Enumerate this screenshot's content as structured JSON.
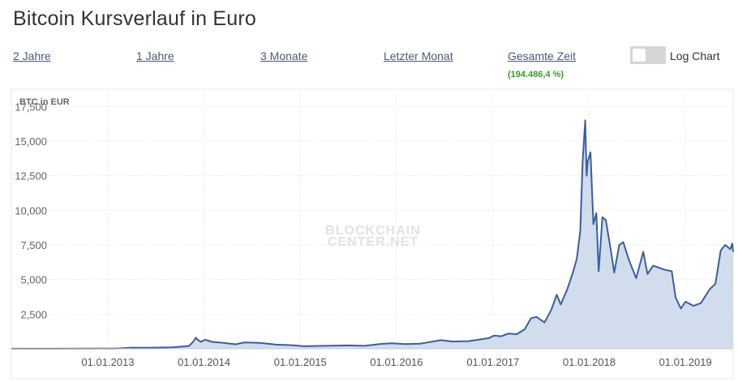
{
  "page": {
    "title": "Bitcoin Kursverlauf in Euro"
  },
  "range_selector": {
    "links": [
      "2 Jahre",
      "1 Jahre",
      "3 Monate",
      "Letzter Monat",
      "Gesamte Zeit"
    ],
    "total_change": "(194.486,4 %)"
  },
  "log_toggle": {
    "label": "Log Chart",
    "enabled": false
  },
  "watermark": {
    "line1": "BLOCKCHAIN",
    "line2": "CENTER.NET"
  },
  "colors": {
    "line": "#3a5f9e",
    "fill": "#c9d6ea",
    "grid": "#e2e2e2",
    "link": "#4a5a7a",
    "positive": "#3a9a2a"
  },
  "chart_data": {
    "type": "area",
    "title": "",
    "ylabel": "BTC in EUR",
    "xlabel": "",
    "ylim": [
      0,
      18750
    ],
    "y_ticks": [
      2500,
      5000,
      7500,
      10000,
      12500,
      15000,
      17500
    ],
    "y_tick_labels": [
      "2,500",
      "5,000",
      "7,500",
      "10,000",
      "12,500",
      "15,000",
      "17,500"
    ],
    "x_ticks": [
      "2013-01-01",
      "2014-01-01",
      "2015-01-01",
      "2016-01-01",
      "2017-01-01",
      "2018-01-01",
      "2019-01-01"
    ],
    "x_tick_labels": [
      "01.01.2013",
      "01.01.2014",
      "01.01.2015",
      "01.01.2016",
      "01.01.2017",
      "01.01.2018",
      "01.01.2019"
    ],
    "xlim": [
      "2012-01-01",
      "2019-07-01"
    ],
    "grid": true,
    "legend": "none",
    "series": [
      {
        "points": [
          [
            "2012-01-01",
            4
          ],
          [
            "2012-06-01",
            5
          ],
          [
            "2012-12-01",
            10
          ],
          [
            "2013-02-01",
            20
          ],
          [
            "2013-04-01",
            80
          ],
          [
            "2013-06-01",
            70
          ],
          [
            "2013-09-01",
            100
          ],
          [
            "2013-11-05",
            200
          ],
          [
            "2013-11-20",
            500
          ],
          [
            "2013-12-01",
            800
          ],
          [
            "2013-12-08",
            650
          ],
          [
            "2013-12-20",
            500
          ],
          [
            "2014-01-05",
            650
          ],
          [
            "2014-02-01",
            500
          ],
          [
            "2014-03-15",
            420
          ],
          [
            "2014-05-01",
            320
          ],
          [
            "2014-06-01",
            450
          ],
          [
            "2014-08-01",
            430
          ],
          [
            "2014-10-01",
            300
          ],
          [
            "2014-12-01",
            260
          ],
          [
            "2015-01-15",
            180
          ],
          [
            "2015-04-01",
            210
          ],
          [
            "2015-07-01",
            240
          ],
          [
            "2015-09-01",
            210
          ],
          [
            "2015-11-05",
            350
          ],
          [
            "2015-12-15",
            400
          ],
          [
            "2016-02-01",
            340
          ],
          [
            "2016-04-01",
            370
          ],
          [
            "2016-06-18",
            620
          ],
          [
            "2016-08-01",
            520
          ],
          [
            "2016-10-01",
            550
          ],
          [
            "2016-12-15",
            760
          ],
          [
            "2017-01-05",
            950
          ],
          [
            "2017-02-01",
            900
          ],
          [
            "2017-03-01",
            1100
          ],
          [
            "2017-04-01",
            1050
          ],
          [
            "2017-05-01",
            1400
          ],
          [
            "2017-05-25",
            2200
          ],
          [
            "2017-06-15",
            2300
          ],
          [
            "2017-07-15",
            1900
          ],
          [
            "2017-08-10",
            2800
          ],
          [
            "2017-08-31",
            3900
          ],
          [
            "2017-09-15",
            3200
          ],
          [
            "2017-10-10",
            4300
          ],
          [
            "2017-10-31",
            5500
          ],
          [
            "2017-11-15",
            6500
          ],
          [
            "2017-11-28",
            8500
          ],
          [
            "2017-12-07",
            13500
          ],
          [
            "2017-12-17",
            16500
          ],
          [
            "2017-12-22",
            12500
          ],
          [
            "2017-12-26",
            13500
          ],
          [
            "2018-01-06",
            14200
          ],
          [
            "2018-01-17",
            9000
          ],
          [
            "2018-01-28",
            9800
          ],
          [
            "2018-02-06",
            5600
          ],
          [
            "2018-02-20",
            9500
          ],
          [
            "2018-03-05",
            9300
          ],
          [
            "2018-03-25",
            7000
          ],
          [
            "2018-04-06",
            5500
          ],
          [
            "2018-04-25",
            7500
          ],
          [
            "2018-05-10",
            7700
          ],
          [
            "2018-06-01",
            6400
          ],
          [
            "2018-06-28",
            5100
          ],
          [
            "2018-07-25",
            7000
          ],
          [
            "2018-08-10",
            5400
          ],
          [
            "2018-09-01",
            6000
          ],
          [
            "2018-10-15",
            5700
          ],
          [
            "2018-11-10",
            5600
          ],
          [
            "2018-11-25",
            3700
          ],
          [
            "2018-12-15",
            2900
          ],
          [
            "2019-01-01",
            3400
          ],
          [
            "2019-02-01",
            3100
          ],
          [
            "2019-03-01",
            3300
          ],
          [
            "2019-04-03",
            4300
          ],
          [
            "2019-04-25",
            4700
          ],
          [
            "2019-05-15",
            7100
          ],
          [
            "2019-06-01",
            7500
          ],
          [
            "2019-06-20",
            7200
          ],
          [
            "2019-06-28",
            7600
          ],
          [
            "2019-07-01",
            7000
          ]
        ]
      }
    ]
  }
}
